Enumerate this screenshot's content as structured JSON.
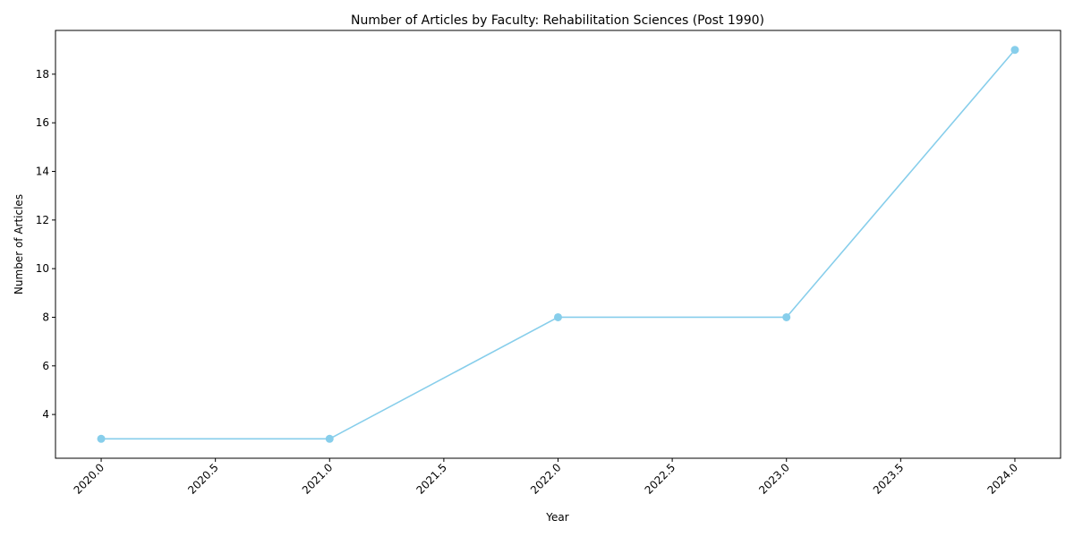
{
  "chart_data": {
    "type": "line",
    "title": "Number of Articles by Faculty: Rehabilitation Sciences (Post 1990)",
    "xlabel": "Year",
    "ylabel": "Number of Articles",
    "x": [
      2020,
      2021,
      2022,
      2023,
      2024
    ],
    "series": [
      {
        "values": [
          3,
          3,
          8,
          8,
          19
        ],
        "color": "#87CEEB",
        "marker": "circle"
      }
    ],
    "xlim": [
      2019.8,
      2024.2
    ],
    "ylim": [
      2.2,
      19.8
    ],
    "xticks": [
      "2020.0",
      "2020.5",
      "2021.0",
      "2021.5",
      "2022.0",
      "2022.5",
      "2023.0",
      "2023.5",
      "2024.0"
    ],
    "yticks": [
      "4",
      "6",
      "8",
      "10",
      "12",
      "14",
      "16",
      "18"
    ],
    "x_tick_rotation": 45,
    "grid": false,
    "legend": false
  }
}
